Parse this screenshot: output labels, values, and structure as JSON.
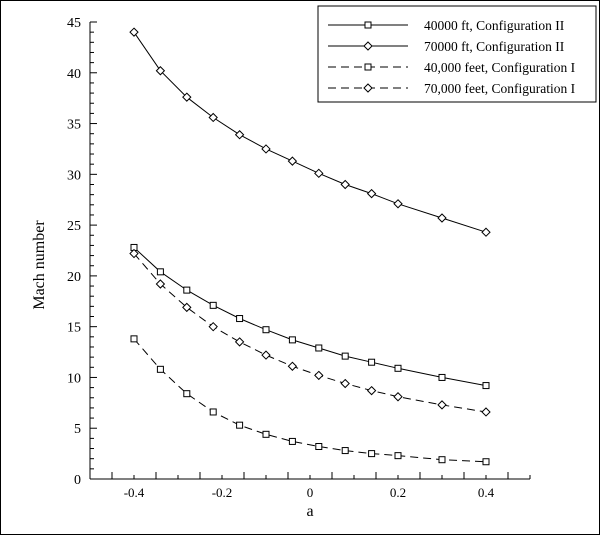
{
  "chart_data": {
    "type": "line",
    "title": "",
    "xlabel": "a",
    "ylabel": "Mach number",
    "xlim": [
      -0.5,
      0.5
    ],
    "ylim": [
      0,
      45
    ],
    "x_ticks": [
      -0.4,
      -0.2,
      0,
      0.2,
      0.4
    ],
    "x_tick_labels": [
      "-0.4",
      "-0.2",
      "0",
      "0.2",
      "0.4"
    ],
    "y_ticks": [
      0,
      5,
      10,
      15,
      20,
      25,
      30,
      35,
      40,
      45
    ],
    "y_tick_labels": [
      "0",
      "5",
      "10",
      "15",
      "20",
      "25",
      "30",
      "35",
      "40",
      "45"
    ],
    "grid": false,
    "legend_position": "top-right",
    "series": [
      {
        "name": "40000 ft, Configuration II",
        "line_style": "solid",
        "marker": "square",
        "x": [
          -0.4,
          -0.34,
          -0.28,
          -0.22,
          -0.16,
          -0.1,
          -0.04,
          0.02,
          0.08,
          0.14,
          0.2,
          0.3,
          0.4
        ],
        "y": [
          22.8,
          20.4,
          18.6,
          17.1,
          15.8,
          14.7,
          13.7,
          12.9,
          12.1,
          11.5,
          10.9,
          10.0,
          9.2
        ]
      },
      {
        "name": "70000 ft, Configuration II",
        "line_style": "solid",
        "marker": "diamond",
        "x": [
          -0.4,
          -0.34,
          -0.28,
          -0.22,
          -0.16,
          -0.1,
          -0.04,
          0.02,
          0.08,
          0.14,
          0.2,
          0.3,
          0.4
        ],
        "y": [
          44.0,
          40.2,
          37.6,
          35.6,
          33.9,
          32.5,
          31.3,
          30.1,
          29.0,
          28.1,
          27.1,
          25.7,
          24.3
        ]
      },
      {
        "name": "40,000 feet, Configuration I",
        "line_style": "dashed",
        "marker": "square",
        "x": [
          -0.4,
          -0.34,
          -0.28,
          -0.22,
          -0.16,
          -0.1,
          -0.04,
          0.02,
          0.08,
          0.14,
          0.2,
          0.3,
          0.4
        ],
        "y": [
          13.8,
          10.8,
          8.4,
          6.6,
          5.3,
          4.4,
          3.7,
          3.2,
          2.8,
          2.5,
          2.3,
          1.9,
          1.7
        ]
      },
      {
        "name": "70,000 feet, Configuration I",
        "line_style": "dashed",
        "marker": "diamond",
        "x": [
          -0.4,
          -0.34,
          -0.28,
          -0.22,
          -0.16,
          -0.1,
          -0.04,
          0.02,
          0.08,
          0.14,
          0.2,
          0.3,
          0.4
        ],
        "y": [
          22.2,
          19.2,
          16.9,
          15.0,
          13.5,
          12.2,
          11.1,
          10.2,
          9.4,
          8.7,
          8.1,
          7.3,
          6.6
        ]
      }
    ]
  }
}
